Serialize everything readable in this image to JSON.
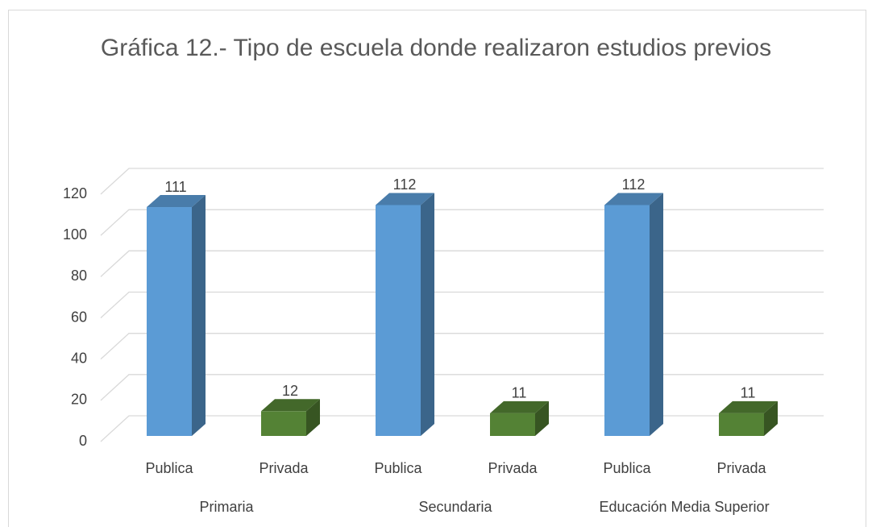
{
  "chart_data": {
    "type": "bar3d",
    "title": "Gráfica 12.- Tipo de escuela donde realizaron estudios previos",
    "groups": [
      {
        "name": "Primaria",
        "categories": [
          "Publica",
          "Privada"
        ],
        "values": [
          111,
          12
        ]
      },
      {
        "name": "Secundaria",
        "categories": [
          "Publica",
          "Privada"
        ],
        "values": [
          112,
          11
        ]
      },
      {
        "name": "Educación Media Superior",
        "categories": [
          "Publica",
          "Privada"
        ],
        "values": [
          112,
          11
        ]
      }
    ],
    "colors": [
      "#5b9bd5",
      "#548235"
    ],
    "ylim": [
      0,
      120
    ],
    "yticks": [
      0,
      20,
      40,
      60,
      80,
      100,
      120
    ],
    "grid": true
  }
}
